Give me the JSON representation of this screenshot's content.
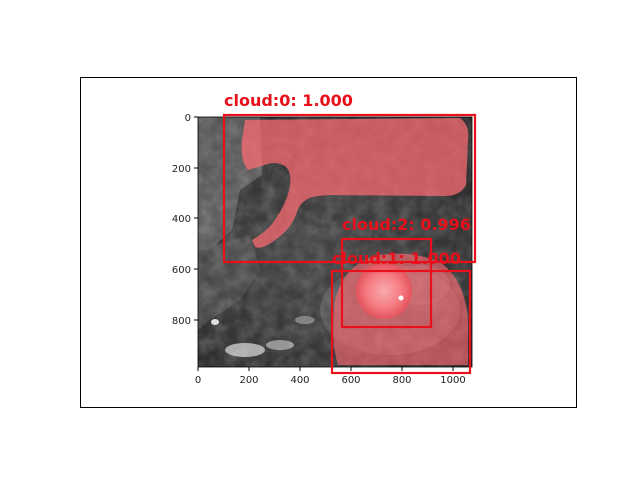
{
  "figure": {
    "x_ticks": [
      "0",
      "200",
      "400",
      "600",
      "800",
      "1000"
    ],
    "y_ticks": [
      "0",
      "200",
      "400",
      "600",
      "800"
    ],
    "image_description_icon": "satellite-cloud-image"
  },
  "detections": [
    {
      "label": "cloud:0: 1.000",
      "score": 1.0,
      "class_id": 0
    },
    {
      "label": "cloud:2: 0.996",
      "score": 0.996,
      "class_id": 2
    },
    {
      "label": "cloud:1: 1.000",
      "score": 1.0,
      "class_id": 1
    }
  ],
  "colors": {
    "box": "#e8101a",
    "mask": "#ff6b73",
    "label": "#e8101a",
    "frame": "#000000"
  }
}
